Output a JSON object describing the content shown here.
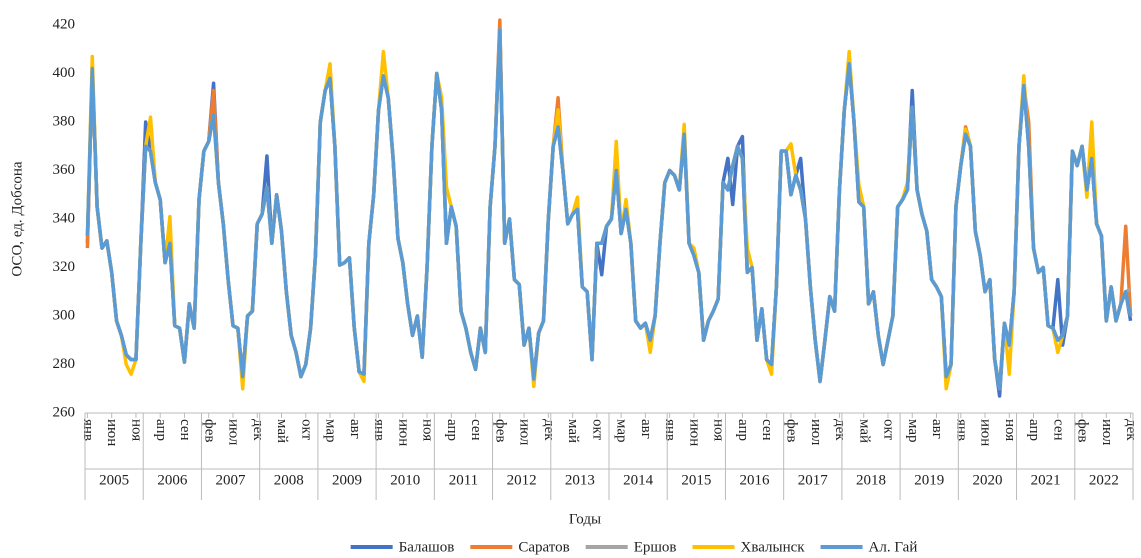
{
  "chart_data": {
    "type": "line",
    "y_label": "ОСО, ед. Добсона",
    "x_label": "Годы",
    "categories": [
      "янв",
      null,
      null,
      null,
      null,
      "июн",
      null,
      null,
      null,
      null,
      "ноя",
      null,
      null,
      null,
      null,
      "апр",
      null,
      null,
      null,
      null,
      "сен",
      null,
      null,
      null,
      null,
      "фев",
      null,
      null,
      null,
      null,
      "июл",
      null,
      null,
      null,
      null,
      "дек",
      null,
      null,
      null,
      null,
      "май",
      null,
      null,
      null,
      null,
      "окт",
      null,
      null,
      null,
      null,
      "мар",
      null,
      null,
      null,
      null,
      "авг",
      null,
      null,
      null,
      null,
      "янв",
      null,
      null,
      null,
      null,
      "июн",
      null,
      null,
      null,
      null,
      "ноя",
      null,
      null,
      null,
      null,
      "апр",
      null,
      null,
      null,
      null,
      "сен",
      null,
      null,
      null,
      null,
      "фев",
      null,
      null,
      null,
      null,
      "июл",
      null,
      null,
      null,
      null,
      "дек",
      null,
      null,
      null,
      null,
      "май",
      null,
      null,
      null,
      null,
      "окт",
      null,
      null,
      null,
      null,
      "мар",
      null,
      null,
      null,
      null,
      "авг",
      null,
      null,
      null,
      null,
      "янв",
      null,
      null,
      null,
      null,
      "июн",
      null,
      null,
      null,
      null,
      "ноя",
      null,
      null,
      null,
      null,
      "апр",
      null,
      null,
      null,
      null,
      "сен",
      null,
      null,
      null,
      null,
      "фев",
      null,
      null,
      null,
      null,
      "июл",
      null,
      null,
      null,
      null,
      "дек",
      null,
      null,
      null,
      null,
      "май",
      null,
      null,
      null,
      null,
      "окт",
      null,
      null,
      null,
      null,
      "мар",
      null,
      null,
      null,
      null,
      "авг",
      null,
      null,
      null,
      null,
      "янв",
      null,
      null,
      null,
      null,
      "июн",
      null,
      null,
      null,
      null,
      "ноя",
      null,
      null,
      null,
      null,
      "апр",
      null,
      null,
      null,
      null,
      "сен",
      null,
      null,
      null,
      null,
      "фев",
      null,
      null,
      null,
      null,
      "июл",
      null,
      null,
      null,
      null,
      "дек"
    ],
    "year_groups": [
      "2005",
      "2006",
      "2007",
      "2008",
      "2009",
      "2010",
      "2011",
      "2012",
      "2013",
      "2014",
      "2015",
      "2016",
      "2017",
      "2018",
      "2019",
      "2020",
      "2021",
      "2022"
    ],
    "ylim": [
      260,
      420
    ],
    "yticks": [
      260,
      280,
      300,
      320,
      340,
      360,
      380,
      400,
      420
    ],
    "grid": false,
    "legend": "bottom",
    "series": [
      {
        "name": "Балашов",
        "color": "#4472c4",
        "values": [
          330,
          402,
          345,
          328,
          331,
          318,
          298,
          292,
          284,
          282,
          282,
          330,
          380,
          368,
          355,
          348,
          322,
          330,
          296,
          295,
          281,
          305,
          295,
          348,
          368,
          372,
          396,
          355,
          338,
          315,
          296,
          295,
          275,
          300,
          302,
          338,
          342,
          366,
          330,
          350,
          335,
          310,
          292,
          285,
          275,
          280,
          295,
          325,
          380,
          393,
          398,
          370,
          321,
          322,
          324,
          295,
          277,
          276,
          330,
          350,
          385,
          399,
          390,
          365,
          332,
          322,
          305,
          292,
          300,
          283,
          320,
          370,
          400,
          385,
          330,
          345,
          337,
          302,
          295,
          285,
          278,
          295,
          285,
          345,
          370,
          418,
          330,
          340,
          315,
          313,
          288,
          295,
          274,
          293,
          298,
          340,
          370,
          378,
          360,
          338,
          342,
          344,
          312,
          310,
          282,
          330,
          317,
          337,
          340,
          360,
          334,
          344,
          330,
          298,
          295,
          297,
          290,
          300,
          330,
          355,
          360,
          358,
          352,
          375,
          330,
          325,
          318,
          290,
          298,
          302,
          307,
          355,
          365,
          346,
          370,
          374,
          318,
          320,
          290,
          303,
          282,
          280,
          312,
          368,
          368,
          350,
          358,
          365,
          340,
          312,
          290,
          273,
          290,
          308,
          302,
          352,
          385,
          404,
          380,
          347,
          345,
          305,
          310,
          292,
          280,
          290,
          300,
          345,
          348,
          352,
          393,
          352,
          342,
          335,
          315,
          312,
          308,
          275,
          280,
          345,
          362,
          375,
          370,
          335,
          325,
          310,
          315,
          282,
          267,
          297,
          288,
          310,
          370,
          395,
          370,
          328,
          318,
          320,
          296,
          295,
          315,
          288,
          300,
          368,
          362,
          370,
          352,
          365,
          338,
          333,
          298,
          312,
          298,
          305,
          310,
          298
        ]
      },
      {
        "name": "Саратов",
        "color": "#ed7d31",
        "values": [
          328,
          402,
          345,
          328,
          331,
          318,
          298,
          292,
          284,
          282,
          282,
          330,
          370,
          368,
          355,
          348,
          322,
          330,
          296,
          295,
          281,
          305,
          295,
          348,
          368,
          372,
          393,
          355,
          338,
          315,
          296,
          295,
          275,
          300,
          302,
          338,
          342,
          353,
          330,
          350,
          335,
          310,
          292,
          285,
          275,
          280,
          295,
          325,
          380,
          393,
          398,
          370,
          321,
          322,
          324,
          295,
          277,
          276,
          330,
          350,
          385,
          399,
          390,
          365,
          332,
          322,
          305,
          292,
          300,
          283,
          320,
          370,
          400,
          385,
          330,
          345,
          337,
          302,
          295,
          285,
          278,
          295,
          285,
          345,
          370,
          422,
          330,
          340,
          315,
          313,
          288,
          295,
          274,
          293,
          298,
          340,
          370,
          390,
          360,
          338,
          342,
          344,
          312,
          310,
          282,
          330,
          330,
          337,
          340,
          360,
          334,
          344,
          330,
          298,
          295,
          297,
          290,
          300,
          330,
          355,
          360,
          358,
          352,
          375,
          330,
          325,
          318,
          290,
          298,
          302,
          307,
          355,
          352,
          362,
          370,
          365,
          318,
          320,
          290,
          303,
          282,
          280,
          312,
          368,
          368,
          350,
          358,
          352,
          340,
          312,
          290,
          273,
          290,
          308,
          302,
          352,
          385,
          404,
          380,
          347,
          345,
          305,
          310,
          292,
          280,
          290,
          300,
          345,
          348,
          352,
          386,
          352,
          342,
          335,
          315,
          312,
          308,
          275,
          280,
          345,
          362,
          378,
          370,
          335,
          325,
          310,
          315,
          282,
          270,
          297,
          288,
          310,
          370,
          395,
          380,
          328,
          318,
          320,
          296,
          295,
          290,
          292,
          300,
          368,
          362,
          370,
          352,
          365,
          338,
          333,
          298,
          312,
          298,
          305,
          337,
          300
        ]
      },
      {
        "name": "Ершов",
        "color": "#a5a5a5",
        "values": [
          333,
          402,
          345,
          328,
          331,
          318,
          298,
          292,
          284,
          282,
          282,
          330,
          370,
          368,
          355,
          348,
          322,
          330,
          296,
          295,
          281,
          305,
          295,
          348,
          368,
          372,
          383,
          355,
          338,
          315,
          296,
          295,
          275,
          300,
          302,
          338,
          342,
          353,
          330,
          350,
          335,
          310,
          292,
          285,
          275,
          280,
          295,
          325,
          380,
          393,
          398,
          370,
          321,
          322,
          324,
          295,
          277,
          276,
          330,
          350,
          385,
          399,
          390,
          365,
          332,
          322,
          305,
          292,
          300,
          283,
          320,
          370,
          400,
          385,
          330,
          345,
          337,
          302,
          295,
          285,
          278,
          295,
          285,
          345,
          370,
          418,
          330,
          340,
          315,
          313,
          288,
          295,
          274,
          293,
          298,
          340,
          370,
          378,
          360,
          338,
          342,
          344,
          312,
          310,
          282,
          330,
          330,
          337,
          340,
          360,
          334,
          344,
          330,
          298,
          295,
          297,
          290,
          300,
          330,
          355,
          360,
          358,
          352,
          375,
          330,
          325,
          318,
          290,
          298,
          302,
          307,
          355,
          352,
          362,
          370,
          365,
          318,
          320,
          290,
          303,
          282,
          280,
          312,
          368,
          368,
          350,
          358,
          352,
          340,
          312,
          290,
          273,
          290,
          308,
          302,
          352,
          385,
          404,
          380,
          347,
          345,
          305,
          310,
          292,
          280,
          290,
          300,
          345,
          348,
          352,
          386,
          352,
          342,
          335,
          315,
          312,
          308,
          275,
          280,
          345,
          362,
          375,
          370,
          335,
          325,
          310,
          315,
          282,
          270,
          297,
          288,
          310,
          370,
          395,
          370,
          328,
          318,
          320,
          296,
          295,
          290,
          292,
          300,
          368,
          362,
          370,
          352,
          365,
          338,
          333,
          298,
          312,
          298,
          305,
          310,
          311
        ]
      },
      {
        "name": "Хвалынск",
        "color": "#ffc000",
        "values": [
          333,
          407,
          345,
          328,
          331,
          318,
          298,
          292,
          280,
          276,
          282,
          330,
          370,
          382,
          355,
          348,
          322,
          341,
          296,
          295,
          281,
          305,
          295,
          348,
          368,
          372,
          383,
          355,
          338,
          315,
          296,
          295,
          270,
          300,
          302,
          338,
          342,
          353,
          330,
          350,
          335,
          310,
          292,
          285,
          275,
          280,
          295,
          325,
          380,
          393,
          404,
          370,
          321,
          322,
          324,
          295,
          277,
          273,
          330,
          350,
          385,
          409,
          390,
          365,
          332,
          322,
          305,
          292,
          300,
          283,
          320,
          370,
          400,
          390,
          353,
          345,
          337,
          302,
          295,
          285,
          278,
          295,
          285,
          345,
          370,
          418,
          330,
          340,
          315,
          313,
          288,
          295,
          271,
          293,
          298,
          340,
          370,
          385,
          360,
          338,
          342,
          349,
          312,
          310,
          282,
          330,
          330,
          337,
          340,
          372,
          334,
          348,
          330,
          298,
          295,
          297,
          285,
          300,
          330,
          355,
          360,
          358,
          352,
          379,
          330,
          328,
          318,
          290,
          298,
          302,
          307,
          355,
          352,
          362,
          370,
          365,
          328,
          320,
          290,
          303,
          282,
          276,
          312,
          368,
          368,
          371,
          358,
          352,
          340,
          312,
          290,
          273,
          290,
          308,
          302,
          352,
          385,
          409,
          380,
          354,
          345,
          305,
          310,
          292,
          280,
          290,
          300,
          345,
          348,
          355,
          386,
          352,
          342,
          335,
          315,
          312,
          308,
          270,
          280,
          345,
          362,
          377,
          370,
          335,
          325,
          310,
          315,
          282,
          270,
          297,
          276,
          310,
          370,
          399,
          370,
          328,
          318,
          320,
          296,
          295,
          285,
          292,
          300,
          368,
          362,
          370,
          349,
          380,
          338,
          333,
          298,
          312,
          298,
          305,
          310,
          300
        ]
      },
      {
        "name": "Ал. Гай",
        "color": "#5b9bd5",
        "values": [
          333,
          402,
          345,
          328,
          331,
          318,
          298,
          292,
          284,
          282,
          282,
          330,
          370,
          368,
          355,
          348,
          322,
          330,
          296,
          295,
          281,
          305,
          295,
          348,
          368,
          372,
          383,
          355,
          338,
          315,
          296,
          295,
          275,
          300,
          302,
          338,
          342,
          353,
          330,
          350,
          335,
          310,
          292,
          285,
          275,
          280,
          295,
          325,
          380,
          393,
          398,
          370,
          321,
          322,
          324,
          295,
          277,
          276,
          330,
          350,
          385,
          399,
          390,
          365,
          332,
          322,
          305,
          292,
          300,
          283,
          320,
          370,
          400,
          385,
          330,
          345,
          337,
          302,
          295,
          285,
          278,
          295,
          285,
          345,
          370,
          418,
          330,
          340,
          315,
          313,
          288,
          295,
          274,
          293,
          298,
          340,
          370,
          378,
          360,
          338,
          342,
          344,
          312,
          310,
          282,
          330,
          330,
          337,
          340,
          360,
          334,
          344,
          330,
          298,
          295,
          297,
          290,
          300,
          330,
          355,
          360,
          358,
          352,
          375,
          330,
          325,
          318,
          290,
          298,
          302,
          307,
          355,
          352,
          362,
          370,
          365,
          318,
          320,
          290,
          303,
          282,
          280,
          312,
          368,
          368,
          350,
          358,
          352,
          340,
          312,
          290,
          273,
          290,
          308,
          302,
          352,
          385,
          404,
          380,
          347,
          345,
          305,
          310,
          292,
          280,
          290,
          300,
          345,
          348,
          352,
          386,
          352,
          342,
          335,
          315,
          312,
          308,
          275,
          280,
          345,
          362,
          375,
          370,
          335,
          325,
          310,
          315,
          282,
          270,
          297,
          288,
          310,
          370,
          395,
          370,
          328,
          318,
          320,
          296,
          295,
          290,
          292,
          300,
          368,
          362,
          370,
          352,
          365,
          338,
          333,
          298,
          312,
          298,
          305,
          310,
          300
        ]
      }
    ]
  }
}
